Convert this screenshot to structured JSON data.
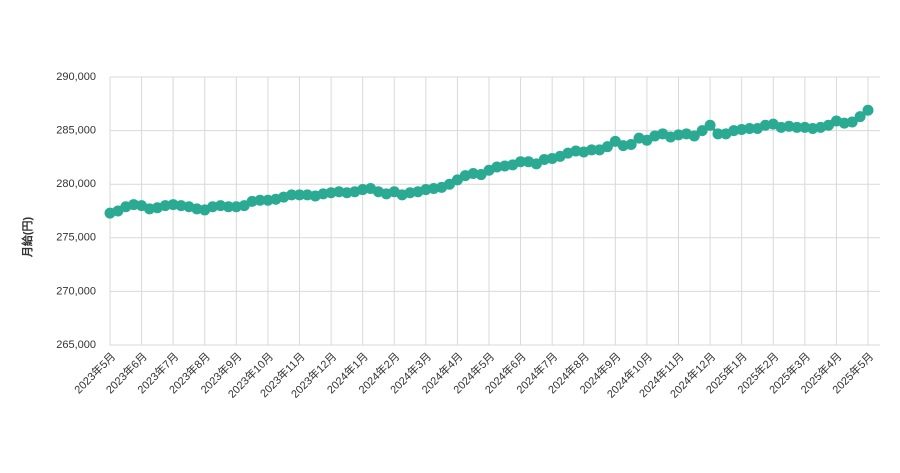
{
  "chart_data": {
    "type": "line",
    "y_label": "月給(円)",
    "categories": [
      "2023年5月",
      null,
      null,
      null,
      "2023年6月",
      null,
      null,
      null,
      "2023年7月",
      null,
      null,
      null,
      "2023年8月",
      null,
      null,
      null,
      "2023年9月",
      null,
      null,
      null,
      "2023年10月",
      null,
      null,
      null,
      "2023年11月",
      null,
      null,
      null,
      "2023年12月",
      null,
      null,
      null,
      "2024年1月",
      null,
      null,
      null,
      "2024年2月",
      null,
      null,
      null,
      "2024年3月",
      null,
      null,
      null,
      "2024年4月",
      null,
      null,
      null,
      "2024年5月",
      null,
      null,
      null,
      "2024年6月",
      null,
      null,
      null,
      "2024年7月",
      null,
      null,
      null,
      "2024年8月",
      null,
      null,
      null,
      "2024年9月",
      null,
      null,
      null,
      "2024年10月",
      null,
      null,
      null,
      "2024年11月",
      null,
      null,
      null,
      "2024年12月",
      null,
      null,
      null,
      "2025年1月",
      null,
      null,
      null,
      "2025年2月",
      null,
      null,
      null,
      "2025年3月",
      null,
      null,
      null,
      "2025年4月",
      null,
      null,
      null,
      "2025年5月"
    ],
    "series": [
      {
        "name": "月給",
        "color": "#2aaa92",
        "values": [
          277300,
          277500,
          277900,
          278100,
          278000,
          277700,
          277800,
          278000,
          278100,
          278000,
          277900,
          277700,
          277600,
          277900,
          278000,
          277900,
          277900,
          278000,
          278400,
          278500,
          278500,
          278600,
          278800,
          279000,
          279000,
          279000,
          278900,
          279100,
          279200,
          279300,
          279200,
          279300,
          279500,
          279600,
          279300,
          279100,
          279300,
          279000,
          279200,
          279300,
          279500,
          279600,
          279700,
          280000,
          280400,
          280800,
          281000,
          280900,
          281300,
          281600,
          281700,
          281800,
          282100,
          282100,
          281900,
          282300,
          282400,
          282600,
          282900,
          283100,
          283000,
          283200,
          283200,
          283500,
          284000,
          283600,
          283700,
          284300,
          284100,
          284500,
          284700,
          284400,
          284600,
          284700,
          284500,
          285000,
          285500,
          284700,
          284700,
          285000,
          285100,
          285200,
          285200,
          285500,
          285600,
          285300,
          285400,
          285300,
          285300,
          285200,
          285300,
          285500,
          285900,
          285700,
          285800,
          286300,
          286900
        ]
      }
    ],
    "ylim": [
      265000,
      290000
    ],
    "yticks": [
      {
        "value": 265000,
        "label": "265,000"
      },
      {
        "value": 270000,
        "label": "270,000"
      },
      {
        "value": 275000,
        "label": "275,000"
      },
      {
        "value": 280000,
        "label": "280,000"
      },
      {
        "value": 285000,
        "label": "285,000"
      },
      {
        "value": 290000,
        "label": "290,000"
      }
    ],
    "grid": true
  }
}
